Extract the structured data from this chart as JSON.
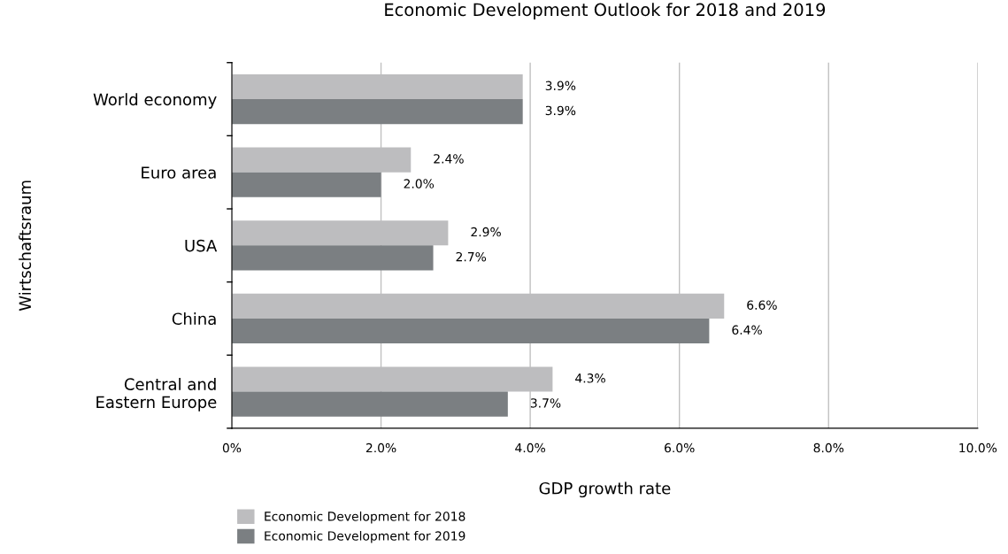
{
  "chart_data": {
    "type": "bar",
    "orientation": "horizontal",
    "title": "Economic Development Outlook for 2018 and 2019",
    "xlabel": "GDP growth rate",
    "ylabel": "Wirtschaftsraum",
    "categories": [
      "World economy",
      "Euro area",
      "USA",
      "China",
      "Central and\nEastern Europe"
    ],
    "series": [
      {
        "name": "Economic Development for 2018",
        "color": "#bdbdbf",
        "values": [
          3.9,
          2.4,
          2.9,
          6.6,
          4.3
        ],
        "value_labels": [
          "3.9%",
          "2.4%",
          "2.9%",
          "6.6%",
          "4.3%"
        ]
      },
      {
        "name": "Economic Development for 2019",
        "color": "#7b7f82",
        "values": [
          3.9,
          2.0,
          2.7,
          6.4,
          3.7
        ],
        "value_labels": [
          "3.9%",
          "2.0%",
          "2.7%",
          "6.4%",
          "3.7%"
        ]
      }
    ],
    "xlim": [
      0,
      10
    ],
    "xticks": [
      {
        "value": 0,
        "label": "0%"
      },
      {
        "value": 2,
        "label": "2.0%"
      },
      {
        "value": 4,
        "label": "4.0%"
      },
      {
        "value": 6,
        "label": "6.0%"
      },
      {
        "value": 8,
        "label": "8.0%"
      },
      {
        "value": 10,
        "label": "10.0%"
      }
    ],
    "grid": "x",
    "legend": "bottom left"
  }
}
